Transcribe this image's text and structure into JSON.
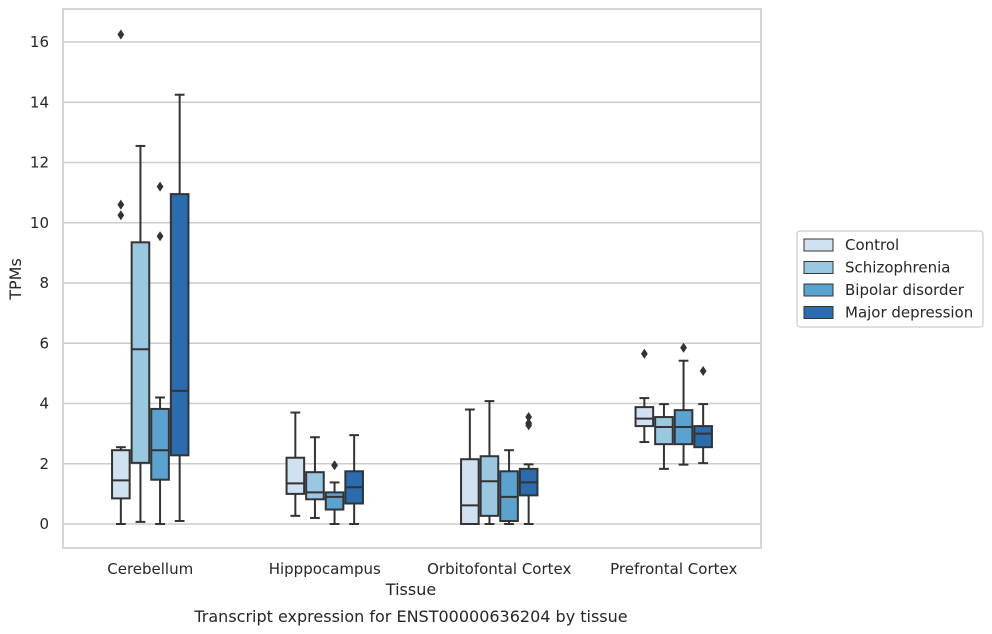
{
  "chart_data": {
    "type": "boxplot",
    "title": "",
    "xlabel": "Tissue",
    "ylabel": "TPMs",
    "caption": "Transcript expression for ENST00000636204 by tissue",
    "ylim": [
      -0.8,
      17.1
    ],
    "yticks": [
      0,
      2,
      4,
      6,
      8,
      10,
      12,
      14,
      16
    ],
    "grid": "horizontal",
    "legend_position": "right",
    "categories": [
      "Cerebellum",
      "Hipppocampus",
      "Orbitofontal Cortex",
      "Prefrontal Cortex"
    ],
    "series": [
      {
        "name": "Control",
        "color": "#d0e1f2",
        "boxes": [
          {
            "whislo": 0.0,
            "q1": 0.85,
            "med": 1.45,
            "q3": 2.45,
            "whishi": 2.55,
            "fliers": [
              10.6,
              10.25,
              16.25
            ]
          },
          {
            "whislo": 0.27,
            "q1": 1.0,
            "med": 1.35,
            "q3": 2.2,
            "whishi": 3.7,
            "fliers": []
          },
          {
            "whislo": 0.0,
            "q1": 0.0,
            "med": 0.62,
            "q3": 2.15,
            "whishi": 3.8,
            "fliers": []
          },
          {
            "whislo": 2.72,
            "q1": 3.25,
            "med": 3.5,
            "q3": 3.88,
            "whishi": 4.18,
            "fliers": [
              5.65
            ]
          }
        ]
      },
      {
        "name": "Schizophrenia",
        "color": "#9ac8e0",
        "boxes": [
          {
            "whislo": 0.07,
            "q1": 2.03,
            "med": 5.8,
            "q3": 9.35,
            "whishi": 12.55,
            "fliers": []
          },
          {
            "whislo": 0.2,
            "q1": 0.82,
            "med": 1.05,
            "q3": 1.72,
            "whishi": 2.88,
            "fliers": []
          },
          {
            "whislo": 0.0,
            "q1": 0.27,
            "med": 1.42,
            "q3": 2.25,
            "whishi": 4.08,
            "fliers": []
          },
          {
            "whislo": 1.83,
            "q1": 2.65,
            "med": 3.22,
            "q3": 3.55,
            "whishi": 3.98,
            "fliers": []
          }
        ]
      },
      {
        "name": "Bipolar disorder",
        "color": "#5aa2cf",
        "boxes": [
          {
            "whislo": 0.0,
            "q1": 1.47,
            "med": 2.45,
            "q3": 3.82,
            "whishi": 4.2,
            "fliers": [
              9.55,
              11.2
            ]
          },
          {
            "whislo": 0.0,
            "q1": 0.48,
            "med": 0.9,
            "q3": 1.05,
            "whishi": 1.38,
            "fliers": [
              1.95
            ]
          },
          {
            "whislo": 0.0,
            "q1": 0.1,
            "med": 0.9,
            "q3": 1.75,
            "whishi": 2.45,
            "fliers": []
          },
          {
            "whislo": 1.97,
            "q1": 2.65,
            "med": 3.22,
            "q3": 3.78,
            "whishi": 5.42,
            "fliers": [
              5.85
            ]
          }
        ]
      },
      {
        "name": "Major depression",
        "color": "#2a6cae",
        "boxes": [
          {
            "whislo": 0.1,
            "q1": 2.28,
            "med": 4.42,
            "q3": 10.95,
            "whishi": 14.25,
            "fliers": []
          },
          {
            "whislo": 0.0,
            "q1": 0.68,
            "med": 1.22,
            "q3": 1.75,
            "whishi": 2.95,
            "fliers": []
          },
          {
            "whislo": 0.0,
            "q1": 0.95,
            "med": 1.38,
            "q3": 1.83,
            "whishi": 1.98,
            "fliers": [
              3.28,
              3.35,
              3.55
            ]
          },
          {
            "whislo": 2.02,
            "q1": 2.55,
            "med": 3.0,
            "q3": 3.25,
            "whishi": 3.98,
            "fliers": [
              5.08
            ]
          }
        ]
      }
    ]
  }
}
